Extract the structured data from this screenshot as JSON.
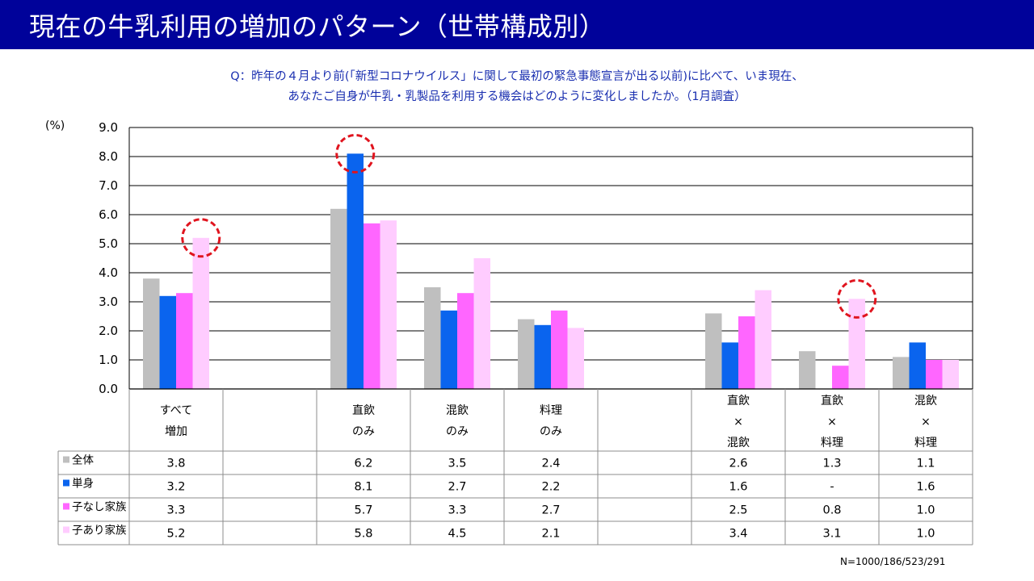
{
  "header": {
    "title": "現在の牛乳利用の増加のパターン（世帯構成別）"
  },
  "question": {
    "line1": "Q：昨年の４月より前(「新型コロナウイルス」に関して最初の緊急事態宣言が出る以前)に比べて、いま現在、",
    "line2": "あなたご自身が牛乳・乳製品を利用する機会はどのように変化しましたか。（1月調査）"
  },
  "unit_label": "(%)",
  "sample_note": "N=1000/186/523/291",
  "colors": {
    "header_bg": "#00029a",
    "question_text": "#1a2fb0",
    "highlight_circle": "#e0141e"
  },
  "chart_data": {
    "type": "bar",
    "ylim": [
      0,
      9
    ],
    "yticks": [
      "0.0",
      "1.0",
      "2.0",
      "3.0",
      "4.0",
      "5.0",
      "6.0",
      "7.0",
      "8.0",
      "9.0"
    ],
    "grid": true,
    "legend": "table-left",
    "categories": [
      [
        "すべて",
        "増加"
      ],
      [],
      [
        "直飲",
        "のみ"
      ],
      [
        "混飲",
        "のみ"
      ],
      [
        "料理",
        "のみ"
      ],
      [],
      [
        "直飲",
        "×",
        "混飲"
      ],
      [
        "直飲",
        "×",
        "料理"
      ],
      [
        "混飲",
        "×",
        "料理"
      ]
    ],
    "series": [
      {
        "name": "全体",
        "color": "#bfbfbf",
        "values": [
          3.8,
          null,
          6.2,
          3.5,
          2.4,
          null,
          2.6,
          1.3,
          1.1
        ],
        "labels": [
          "3.8",
          "",
          "6.2",
          "3.5",
          "2.4",
          "",
          "2.6",
          "1.3",
          "1.1"
        ]
      },
      {
        "name": "単身",
        "color": "#0a64ee",
        "values": [
          3.2,
          null,
          8.1,
          2.7,
          2.2,
          null,
          1.6,
          0,
          1.6
        ],
        "labels": [
          "3.2",
          "",
          "8.1",
          "2.7",
          "2.2",
          "",
          "1.6",
          "-",
          "1.6"
        ]
      },
      {
        "name": "子なし家族",
        "color": "#ff66ff",
        "values": [
          3.3,
          null,
          5.7,
          3.3,
          2.7,
          null,
          2.5,
          0.8,
          1.0
        ],
        "labels": [
          "3.3",
          "",
          "5.7",
          "3.3",
          "2.7",
          "",
          "2.5",
          "0.8",
          "1.0"
        ]
      },
      {
        "name": "子あり家族",
        "color": "#ffccff",
        "values": [
          5.2,
          null,
          5.8,
          4.5,
          2.1,
          null,
          3.4,
          3.1,
          1.0
        ],
        "labels": [
          "5.2",
          "",
          "5.8",
          "4.5",
          "2.1",
          "",
          "3.4",
          "3.1",
          "1.0"
        ]
      }
    ],
    "highlights": [
      {
        "category": 0,
        "series": 3
      },
      {
        "category": 2,
        "series": 1
      },
      {
        "category": 7,
        "series": 3
      }
    ]
  }
}
